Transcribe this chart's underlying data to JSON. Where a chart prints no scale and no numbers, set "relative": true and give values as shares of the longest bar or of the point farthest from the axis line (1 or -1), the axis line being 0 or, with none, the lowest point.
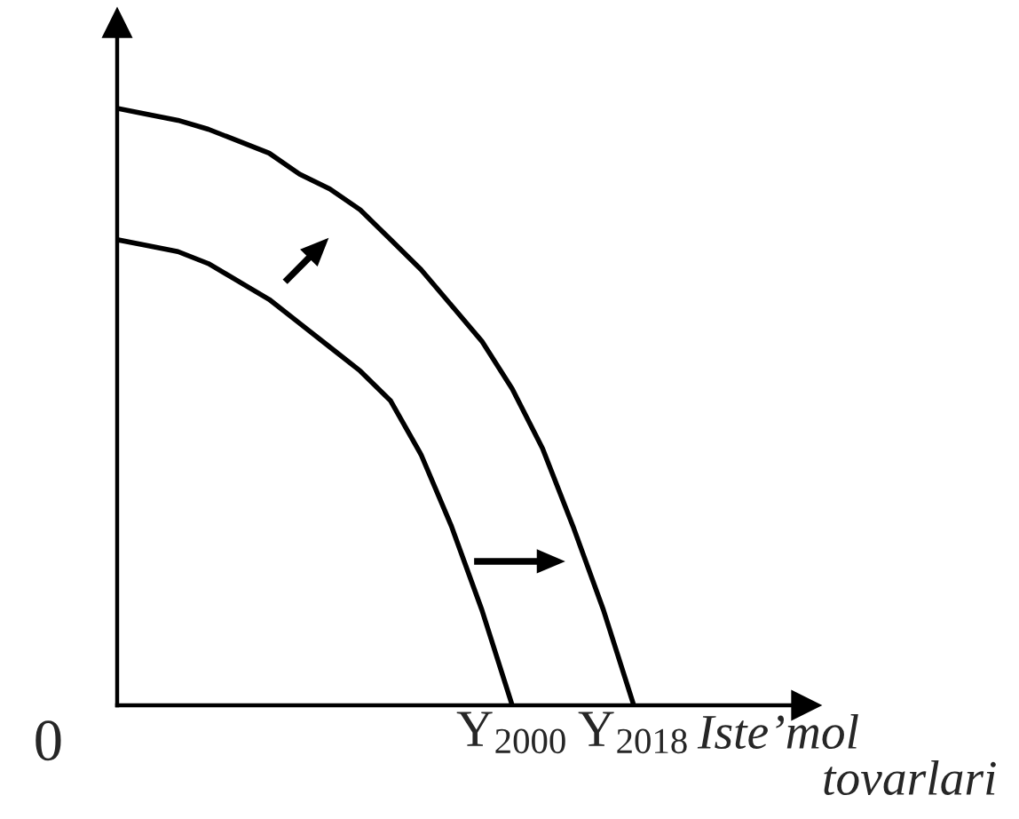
{
  "chart_data": {
    "type": "line",
    "relative": true,
    "xlabel": "Iste’mol\ntovarlari",
    "marker": "none",
    "line_style": "solid",
    "categories": [
      null,
      null,
      null,
      null,
      null,
      null,
      null,
      null,
      null,
      null,
      null,
      null,
      null,
      null,
      null,
      null,
      null,
      null
    ],
    "series": [
      {
        "color": "#000000",
        "values": [
          0.78,
          0.77,
          0.76,
          0.74,
          0.71,
          0.68,
          0.64,
          0.6,
          0.56,
          0.51,
          0.42,
          0.3,
          0.16,
          0,
          null,
          null,
          null,
          null
        ]
      },
      {
        "color": "#000000",
        "values": [
          1,
          0.99,
          0.98,
          0.965,
          0.945,
          0.925,
          0.89,
          0.865,
          0.83,
          0.78,
          0.73,
          0.67,
          0.61,
          0.53,
          0.43,
          0.3,
          0.16,
          0
        ]
      }
    ],
    "annotations": [
      "0",
      "Y$_{2000}$",
      "Y$_{2018}$"
    ]
  }
}
